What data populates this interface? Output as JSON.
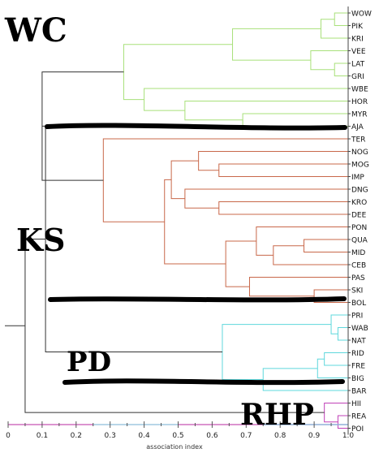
{
  "chart_data": {
    "type": "dendrogram",
    "xlabel": "association index",
    "xlim": [
      0,
      1
    ],
    "ticks": [
      "0",
      "0.1",
      "0.2",
      "0.3",
      "0.4",
      "0.5",
      "0.6",
      "0.7",
      "0.8",
      "0.9",
      "1.0"
    ],
    "leaves": [
      "WOW",
      "PIK",
      "KRI",
      "VEE",
      "LAT",
      "GRI",
      "WBE",
      "HOR",
      "MYR",
      "AJA",
      "TER",
      "NOG",
      "MOG",
      "IMP",
      "DNG",
      "KRO",
      "DEE",
      "PON",
      "QUA",
      "MID",
      "CEB",
      "PAS",
      "SKI",
      "BOL",
      "PRI",
      "WAB",
      "NAT",
      "RID",
      "FRE",
      "BIG",
      "BAR",
      "HII",
      "REA",
      "POI"
    ],
    "groups": [
      {
        "label": "WC",
        "color": "#a8e07a"
      },
      {
        "label": "KS",
        "color": "#c8684a"
      },
      {
        "label": "PD",
        "color": "#5fd8dc"
      },
      {
        "label": "RHP",
        "color": "#c040b8"
      }
    ],
    "colors": {
      "WC": "#a8e07a",
      "KS": "#c8684a",
      "PD": "#5fd8dc",
      "RHP": "#c040b8",
      "root": "#333333"
    },
    "merges": [
      {
        "a": "WOW",
        "b": "PIK",
        "height": 0.96,
        "id": "n1",
        "color": "WC"
      },
      {
        "a": "n1",
        "b": "KRI",
        "height": 0.92,
        "id": "n2",
        "color": "WC"
      },
      {
        "a": "LAT",
        "b": "GRI",
        "height": 0.96,
        "id": "n3",
        "color": "WC"
      },
      {
        "a": "VEE",
        "b": "n3",
        "height": 0.89,
        "id": "n4",
        "color": "WC"
      },
      {
        "a": "n2",
        "b": "n4",
        "height": 0.66,
        "id": "n5",
        "color": "WC"
      },
      {
        "a": "MYR",
        "b": "AJA",
        "height": 0.69,
        "id": "n6",
        "color": "WC"
      },
      {
        "a": "HOR",
        "b": "n6",
        "height": 0.52,
        "id": "n7",
        "color": "WC"
      },
      {
        "a": "WBE",
        "b": "n7",
        "height": 0.4,
        "id": "n8",
        "color": "WC"
      },
      {
        "a": "n5",
        "b": "n8",
        "height": 0.34,
        "id": "nWC",
        "color": "WC"
      },
      {
        "a": "MOG",
        "b": "IMP",
        "height": 0.62,
        "id": "k1",
        "color": "KS"
      },
      {
        "a": "NOG",
        "b": "k1",
        "height": 0.56,
        "id": "k2",
        "color": "KS"
      },
      {
        "a": "KRO",
        "b": "DEE",
        "height": 0.62,
        "id": "k3",
        "color": "KS"
      },
      {
        "a": "DNG",
        "b": "k3",
        "height": 0.52,
        "id": "k4",
        "color": "KS"
      },
      {
        "a": "k2",
        "b": "k4",
        "height": 0.48,
        "id": "k5",
        "color": "KS"
      },
      {
        "a": "QUA",
        "b": "MID",
        "height": 0.87,
        "id": "k6",
        "color": "KS"
      },
      {
        "a": "k6",
        "b": "CEB",
        "height": 0.78,
        "id": "k7",
        "color": "KS"
      },
      {
        "a": "PON",
        "b": "k7",
        "height": 0.73,
        "id": "k8",
        "color": "KS"
      },
      {
        "a": "SKI",
        "b": "BOL",
        "height": 0.9,
        "id": "k9",
        "color": "KS"
      },
      {
        "a": "PAS",
        "b": "k9",
        "height": 0.71,
        "id": "k10",
        "color": "KS"
      },
      {
        "a": "k8",
        "b": "k10",
        "height": 0.64,
        "id": "k11",
        "color": "KS"
      },
      {
        "a": "k5",
        "b": "k11",
        "height": 0.46,
        "id": "k12",
        "color": "KS"
      },
      {
        "a": "TER",
        "b": "k12",
        "height": 0.28,
        "id": "nKS",
        "color": "KS"
      },
      {
        "a": "WAB",
        "b": "NAT",
        "height": 0.97,
        "id": "p1",
        "color": "PD"
      },
      {
        "a": "PRI",
        "b": "p1",
        "height": 0.95,
        "id": "p2",
        "color": "PD"
      },
      {
        "a": "RID",
        "b": "FRE",
        "height": 0.93,
        "id": "p3",
        "color": "PD"
      },
      {
        "a": "p3",
        "b": "BIG",
        "height": 0.91,
        "id": "p4",
        "color": "PD"
      },
      {
        "a": "p4",
        "b": "BAR",
        "height": 0.75,
        "id": "p5",
        "color": "PD"
      },
      {
        "a": "p2",
        "b": "p5",
        "height": 0.63,
        "id": "nPD",
        "color": "PD"
      },
      {
        "a": "REA",
        "b": "POI",
        "height": 0.97,
        "id": "r1",
        "color": "RHP"
      },
      {
        "a": "HII",
        "b": "r1",
        "height": 0.93,
        "id": "nRHP",
        "color": "RHP"
      },
      {
        "a": "nWC",
        "b": "nKS",
        "height": 0.1,
        "id": "t1",
        "color": "root"
      },
      {
        "a": "t1",
        "b": "nPD",
        "height": 0.11,
        "id": "t2",
        "color": "root"
      },
      {
        "a": "t2",
        "b": "nRHP",
        "height": 0.05,
        "id": "root",
        "color": "root"
      }
    ]
  }
}
